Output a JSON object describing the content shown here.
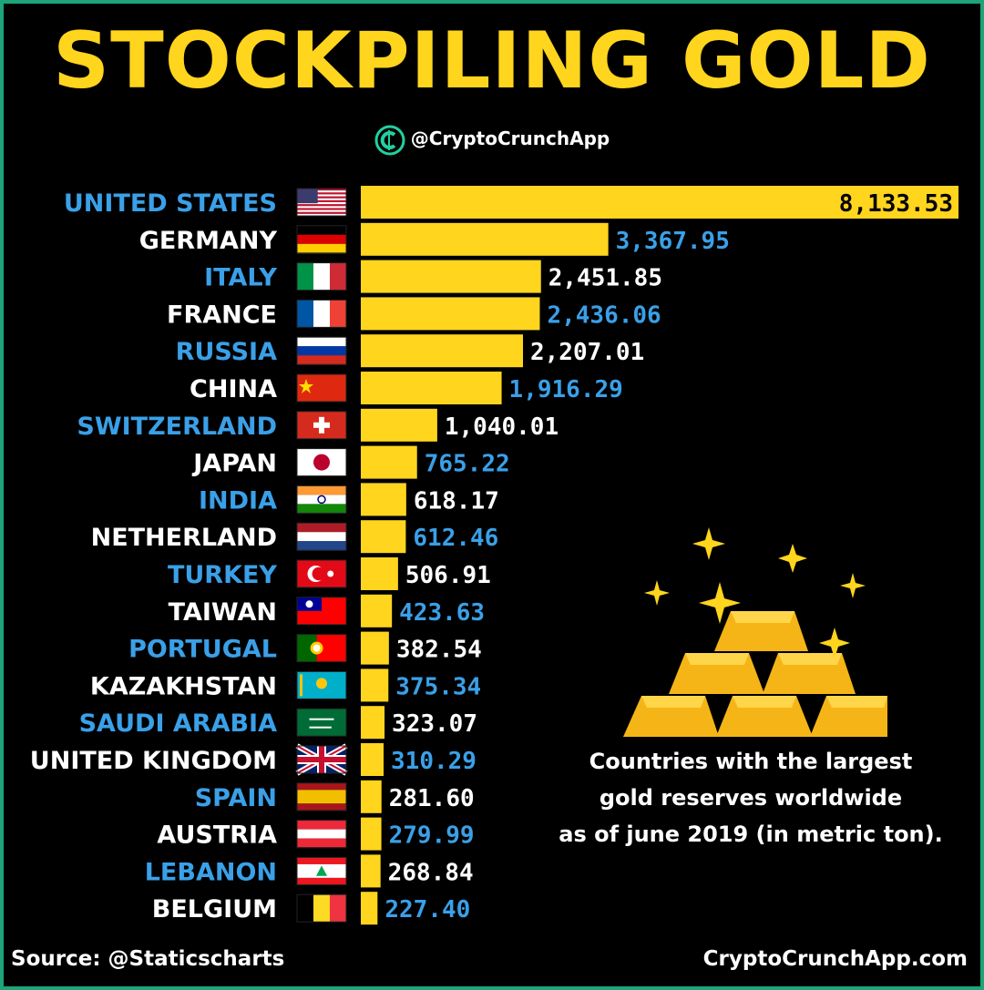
{
  "header": {
    "title": "STOCKPILING GOLD",
    "handle": "@CryptoCrunchApp"
  },
  "colors": {
    "bar": "#ffd51e",
    "blue_text": "#3aa0e8",
    "white_text": "#ffffff",
    "border": "#1fa37a"
  },
  "chart_data": {
    "type": "bar",
    "orientation": "horizontal",
    "categories": [
      "UNITED STATES",
      "GERMANY",
      "ITALY",
      "FRANCE",
      "RUSSIA",
      "CHINA",
      "SWITZERLAND",
      "JAPAN",
      "INDIA",
      "NETHERLAND",
      "TURKEY",
      "TAIWAN",
      "PORTUGAL",
      "KAZAKHSTAN",
      "SAUDI ARABIA",
      "UNITED KINGDOM",
      "SPAIN",
      "AUSTRIA",
      "LEBANON",
      "BELGIUM"
    ],
    "values": [
      8133.53,
      3367.95,
      2451.85,
      2436.06,
      2207.01,
      1916.29,
      1040.01,
      765.22,
      618.17,
      612.46,
      506.91,
      423.63,
      382.54,
      375.34,
      323.07,
      310.29,
      281.6,
      279.99,
      268.84,
      227.4
    ],
    "value_labels": [
      "8,133.53",
      "3,367.95",
      "2,451.85",
      "2,436.06",
      "2,207.01",
      "1,916.29",
      "1,040.01",
      "765.22",
      "618.17",
      "612.46",
      "506.91",
      "423.63",
      "382.54",
      "375.34",
      "323.07",
      "310.29",
      "281.60",
      "279.99",
      "268.84",
      "227.40"
    ],
    "flags": [
      "flag-us-icon",
      "flag-germany-icon",
      "flag-italy-icon",
      "flag-france-icon",
      "flag-russia-icon",
      "flag-china-icon",
      "flag-switzerland-icon",
      "flag-japan-icon",
      "flag-india-icon",
      "flag-netherlands-icon",
      "flag-turkey-icon",
      "flag-taiwan-icon",
      "flag-portugal-icon",
      "flag-kazakhstan-icon",
      "flag-saudi-arabia-icon",
      "flag-uk-icon",
      "flag-spain-icon",
      "flag-austria-icon",
      "flag-lebanon-icon",
      "flag-belgium-icon"
    ],
    "label_color_pattern": [
      "blue",
      "white"
    ],
    "grid": false,
    "legend": "none"
  },
  "caption": {
    "line1": "Countries with the largest",
    "line2": "gold reserves worldwide",
    "line3": "as of june 2019 (in metric ton)."
  },
  "footer": {
    "source": "Source: @Staticscharts",
    "site": "CryptoCrunchApp.com"
  }
}
